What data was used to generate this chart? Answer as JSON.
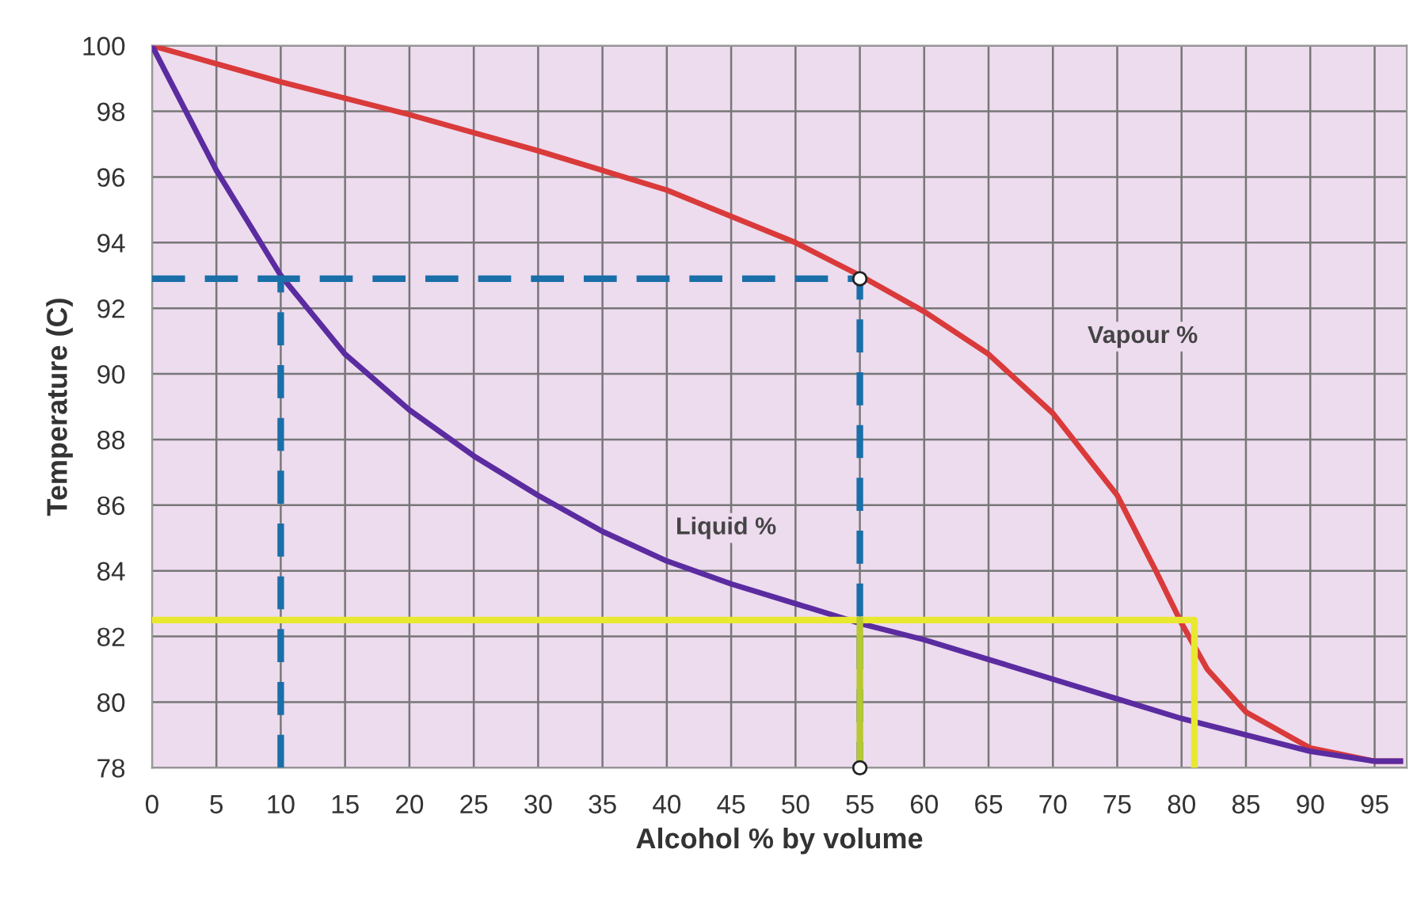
{
  "chart_data": {
    "type": "line",
    "xlabel": "Alcohol % by volume",
    "ylabel": "Temperature (C)",
    "xlim": [
      0,
      97.5
    ],
    "ylim": [
      78,
      100
    ],
    "xticks": [
      0,
      5,
      10,
      15,
      20,
      25,
      30,
      35,
      40,
      45,
      50,
      55,
      60,
      65,
      70,
      75,
      80,
      85,
      90,
      95
    ],
    "yticks": [
      78,
      80,
      82,
      84,
      86,
      88,
      90,
      92,
      94,
      96,
      98,
      100
    ],
    "grid": true,
    "legend": false,
    "series": [
      {
        "name": "Vapour %",
        "color": "#d93a3a",
        "x": [
          0,
          10,
          20,
          30,
          40,
          50,
          55,
          60,
          65,
          70,
          75,
          78,
          80,
          82,
          85,
          90,
          95,
          97
        ],
        "values": [
          100,
          98.9,
          97.9,
          96.8,
          95.6,
          94.0,
          93.0,
          91.9,
          90.6,
          88.8,
          86.3,
          84.0,
          82.4,
          81.0,
          79.7,
          78.6,
          78.2,
          78.2
        ]
      },
      {
        "name": "Liquid %",
        "color": "#5a2ca0",
        "x": [
          0,
          5,
          10,
          15,
          20,
          25,
          30,
          35,
          40,
          45,
          50,
          55,
          60,
          65,
          70,
          75,
          80,
          85,
          90,
          95,
          97
        ],
        "values": [
          100,
          96.2,
          93.0,
          90.6,
          88.9,
          87.5,
          86.3,
          85.2,
          84.3,
          83.6,
          83.0,
          82.4,
          81.9,
          81.3,
          80.7,
          80.1,
          79.5,
          79.0,
          78.5,
          78.2,
          78.2
        ]
      },
      {
        "color": "#1a6fa8",
        "line_style": "dashed",
        "x": [
          10,
          10,
          55,
          55
        ],
        "values": [
          78,
          92.9,
          92.9,
          78
        ]
      },
      {
        "color": "#1a6fa8",
        "line_style": "dashed",
        "x": [
          0,
          10
        ],
        "values": [
          92.9,
          92.9
        ]
      },
      {
        "color": "#e8e830",
        "line_style": "solid",
        "x": [
          0,
          81,
          81
        ],
        "values": [
          82.5,
          82.5,
          78
        ]
      },
      {
        "color": "#b8c830",
        "line_style": "solid",
        "x": [
          55,
          55
        ],
        "values": [
          82.5,
          78
        ]
      },
      {
        "type": "scatter",
        "color": "#ffffff",
        "marker": "circle",
        "x": [
          55,
          55
        ],
        "values": [
          92.9,
          78
        ]
      }
    ]
  }
}
